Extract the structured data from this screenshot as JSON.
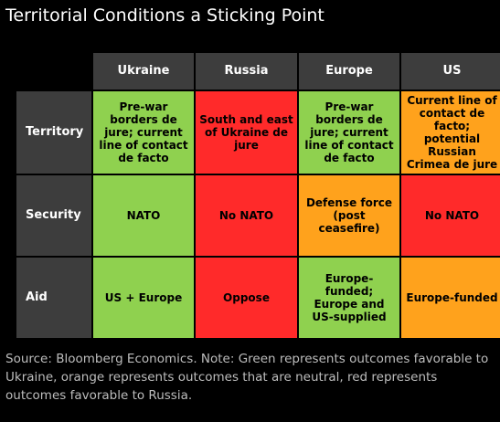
{
  "title": "Territorial Conditions a Sticking Point",
  "chart_data": {
    "type": "table",
    "columns": [
      "Ukraine",
      "Russia",
      "Europe",
      "US"
    ],
    "rows": [
      {
        "label": "Territory",
        "cells": [
          {
            "text": "Pre-war borders de jure; current line of contact de facto",
            "status": "green"
          },
          {
            "text": "South and east of Ukraine de jure",
            "status": "red"
          },
          {
            "text": "Pre-war borders de jure; current line of contact de facto",
            "status": "green"
          },
          {
            "text": "Current line of contact de facto; potential Russian Crimea de jure",
            "status": "orange"
          }
        ]
      },
      {
        "label": "Security",
        "cells": [
          {
            "text": "NATO",
            "status": "green"
          },
          {
            "text": "No NATO",
            "status": "red"
          },
          {
            "text": "Defense force (post ceasefire)",
            "status": "orange"
          },
          {
            "text": "No NATO",
            "status": "red"
          }
        ]
      },
      {
        "label": "Aid",
        "cells": [
          {
            "text": "US + Europe",
            "status": "green"
          },
          {
            "text": "Oppose",
            "status": "red"
          },
          {
            "text": "Europe-funded; Europe and US-supplied",
            "status": "green"
          },
          {
            "text": "Europe-funded",
            "status": "orange"
          }
        ]
      }
    ],
    "colors": {
      "green": "#8fd14f",
      "red": "#ff2a2a",
      "orange": "#ffa21c",
      "header": "#3d3d3d",
      "background": "#000000"
    }
  },
  "source": "Source: Bloomberg Economics. Note: Green represents outcomes favorable to Ukraine, orange represents outcomes that are neutral, red represents outcomes favorable to Russia."
}
